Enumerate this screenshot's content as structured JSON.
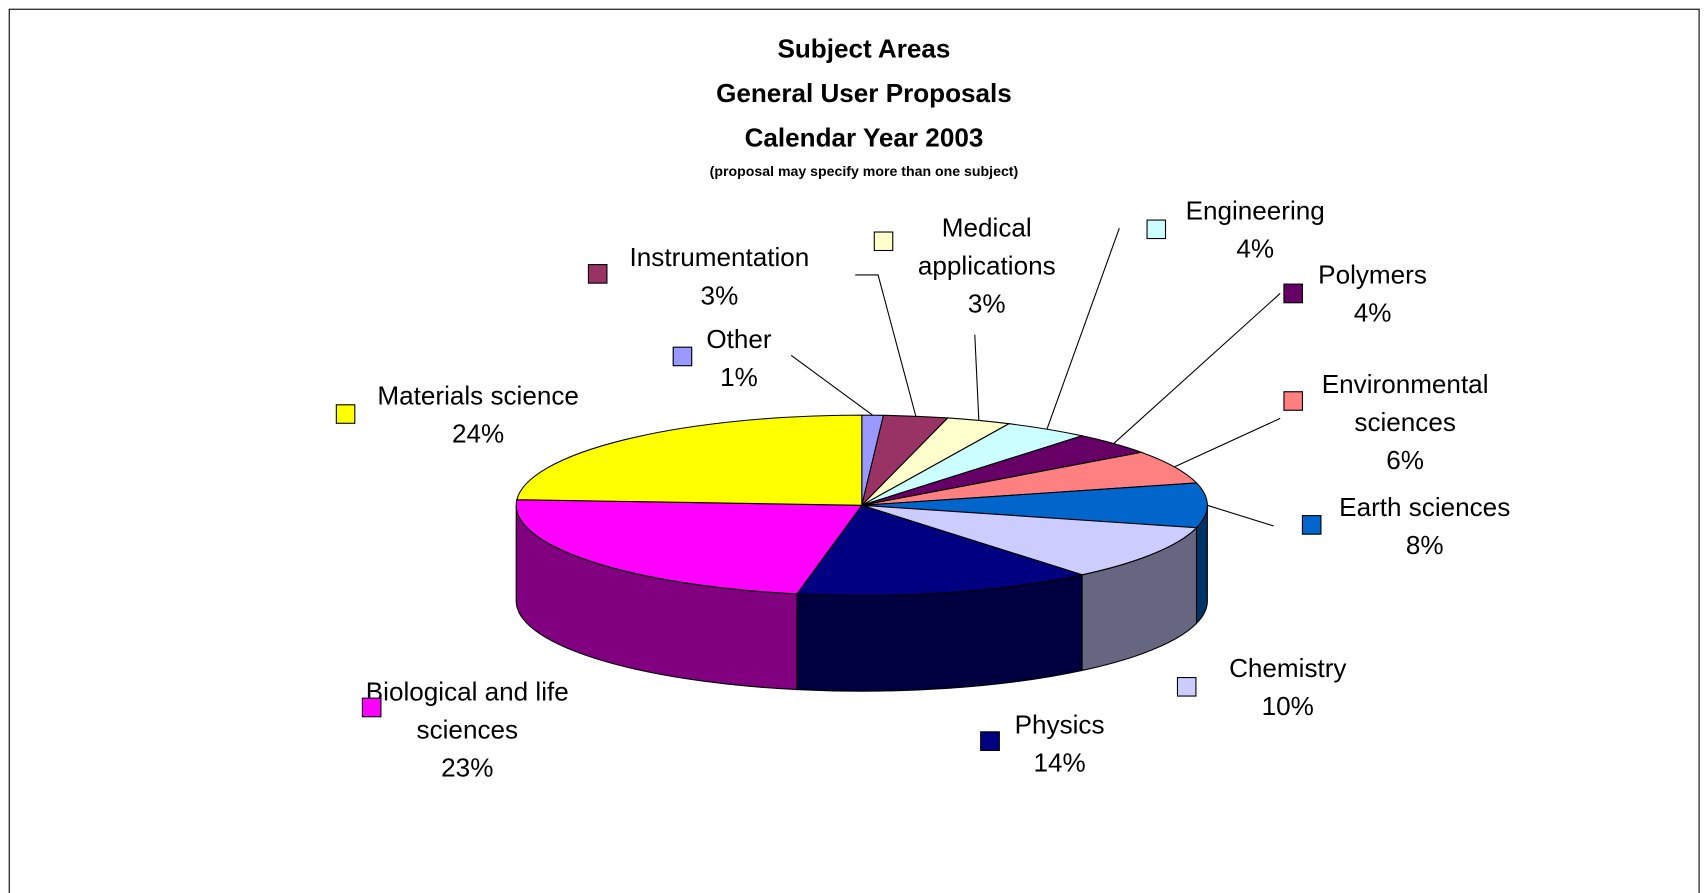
{
  "chart_data": {
    "type": "pie3d",
    "title": [
      "Subject Areas",
      "General User Proposals",
      "Calendar Year 2003"
    ],
    "subtitle": "(proposal may specify more than one subject)",
    "categories": [
      "Other",
      "Instrumentation",
      "Medical applications",
      "Engineering",
      "Polymers",
      "Environmental sciences",
      "Earth sciences",
      "Chemistry",
      "Physics",
      "Biological and life sciences",
      "Materials science"
    ],
    "values": [
      1,
      3,
      3,
      4,
      4,
      6,
      8,
      10,
      14,
      23,
      24
    ],
    "value_labels": [
      "1%",
      "3%",
      "3%",
      "4%",
      "4%",
      "6%",
      "8%",
      "10%",
      "14%",
      "23%",
      "24%"
    ],
    "colors": [
      "#9999ff",
      "#993366",
      "#ffffcc",
      "#ccffff",
      "#660066",
      "#ff8080",
      "#0066cc",
      "#ccccff",
      "#000080",
      "#ff00ff",
      "#ffff00"
    ]
  }
}
